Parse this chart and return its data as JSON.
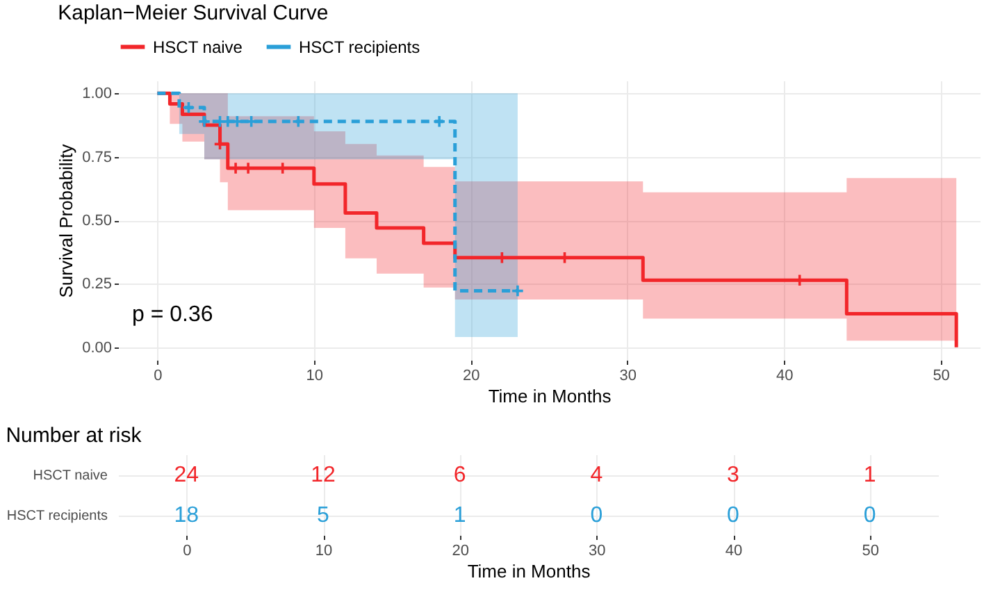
{
  "chart_data": [
    {
      "type": "step",
      "title": "Kaplan−Meier Survival Curve",
      "xlabel": "Time in Months",
      "ylabel": "Survival Probability",
      "xlim": [
        -2.5,
        52.5
      ],
      "xticks": [
        0,
        10,
        20,
        30,
        40,
        50
      ],
      "ylim": [
        -0.05,
        1.05
      ],
      "yticks": [
        {
          "value": 0,
          "label": "0.00"
        },
        {
          "value": 0.25,
          "label": "0.25"
        },
        {
          "value": 0.5,
          "label": "0.50"
        },
        {
          "value": 0.75,
          "label": "0.75"
        },
        {
          "value": 1,
          "label": "1.00"
        }
      ],
      "grid": true,
      "legend": "top",
      "annotations": [
        "p = 0.36"
      ],
      "series": [
        {
          "name": "HSCT naive",
          "color": "#f2262a",
          "line_style": "solid",
          "x": [
            0,
            0.8,
            1.6,
            3,
            4,
            4.5,
            10,
            12,
            14,
            17,
            19,
            31,
            44,
            51
          ],
          "values": [
            1,
            0.958,
            0.917,
            0.875,
            0.8,
            0.705,
            0.643,
            0.529,
            0.47,
            0.41,
            0.353,
            0.264,
            0.132,
            0
          ],
          "lower": [
            1,
            0.88,
            0.81,
            0.74,
            0.65,
            0.54,
            0.47,
            0.35,
            0.29,
            0.235,
            0.188,
            0.113,
            0.026,
            0.026
          ],
          "upper": [
            1,
            1,
            1,
            1,
            1,
            0.91,
            0.85,
            0.8,
            0.755,
            0.71,
            0.653,
            0.61,
            0.666,
            0.666
          ]
        },
        {
          "name": "HSCT recipients",
          "color": "#2a9fd8",
          "line_style": "dashed",
          "x": [
            0,
            1.4,
            3,
            19,
            23
          ],
          "values": [
            1,
            0.944,
            0.889,
            0.222,
            0.222
          ],
          "lower": [
            1,
            0.84,
            0.74,
            0.04,
            0.04
          ],
          "upper": [
            1,
            1,
            1,
            1,
            1
          ]
        },
        {
          "type": "scatter",
          "marker": "cross",
          "color": "#f2262a",
          "x": [
            4,
            5,
            5.8,
            8,
            22,
            26,
            41
          ],
          "values": [
            0.8,
            0.705,
            0.705,
            0.705,
            0.353,
            0.353,
            0.264
          ]
        },
        {
          "type": "scatter",
          "marker": "cross",
          "color": "#2a9fd8",
          "x": [
            2,
            3,
            4,
            4.5,
            5.1,
            6,
            9,
            18,
            23
          ],
          "values": [
            0.944,
            0.889,
            0.889,
            0.889,
            0.889,
            0.889,
            0.889,
            0.889,
            0.222
          ]
        }
      ]
    },
    {
      "type": "heatmap",
      "title": "Number at risk",
      "xlabel": "Time in Months",
      "grid": true,
      "data_labels": true,
      "categories": [
        "0",
        "10",
        "20",
        "30",
        "40",
        "50"
      ],
      "y_categories": [
        "HSCT naive",
        "HSCT recipients"
      ],
      "colors": [
        "#f2262a",
        "#2a9fd8"
      ],
      "cells": [
        [
          24,
          12,
          6,
          4,
          3,
          1
        ],
        [
          18,
          5,
          1,
          0,
          0,
          0
        ]
      ]
    }
  ]
}
